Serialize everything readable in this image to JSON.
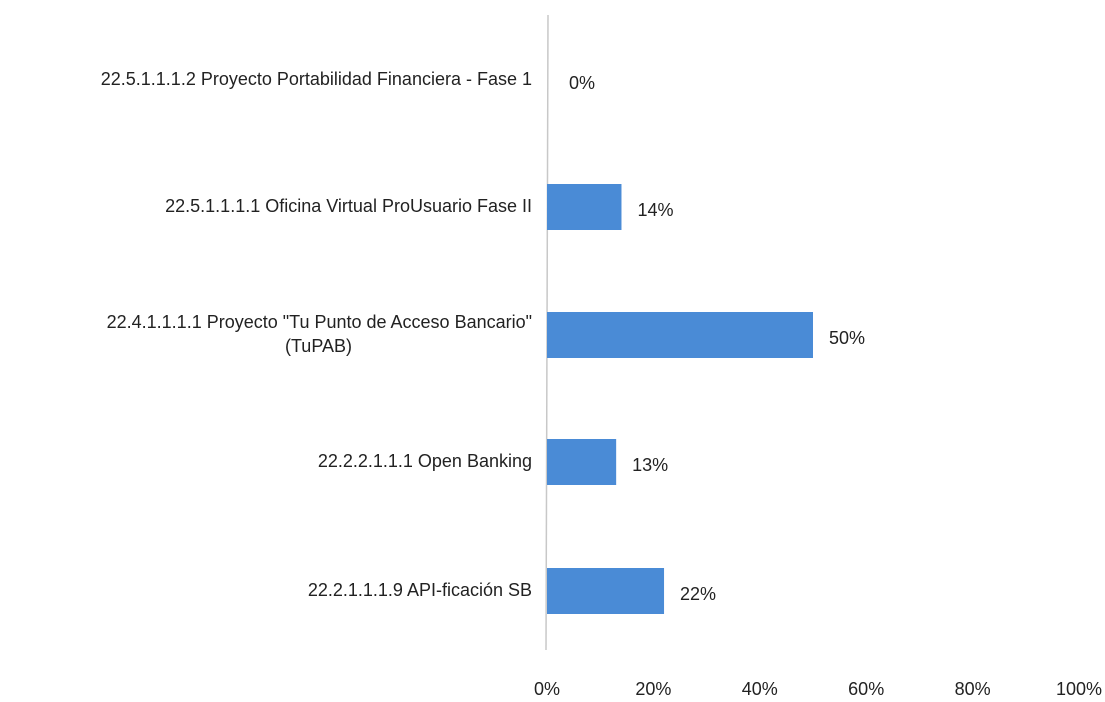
{
  "chart_data": {
    "type": "bar",
    "orientation": "horizontal",
    "categories": [
      "22.5.1.1.1.2 Proyecto Portabilidad Financiera - Fase 1",
      "22.5.1.1.1.1 Oficina Virtual ProUsuario Fase II",
      "22.4.1.1.1.1 Proyecto \"Tu Punto de Acceso Bancario\"\n(TuPAB)",
      "22.2.2.1.1.1  Open Banking",
      "22.2.1.1.1.9 API-ficación SB"
    ],
    "values": [
      0,
      14,
      50,
      13,
      22
    ],
    "value_labels": [
      "0%",
      "14%",
      "50%",
      "13%",
      "22%"
    ],
    "color": "#4a8bd6",
    "xlim": [
      0,
      100
    ],
    "xticks": [
      {
        "value": 0,
        "label": "0%"
      },
      {
        "value": 20,
        "label": "20%"
      },
      {
        "value": 40,
        "label": "40%"
      },
      {
        "value": 60,
        "label": "60%"
      },
      {
        "value": 80,
        "label": "80%"
      },
      {
        "value": 100,
        "label": "100%"
      }
    ],
    "grid": false
  }
}
